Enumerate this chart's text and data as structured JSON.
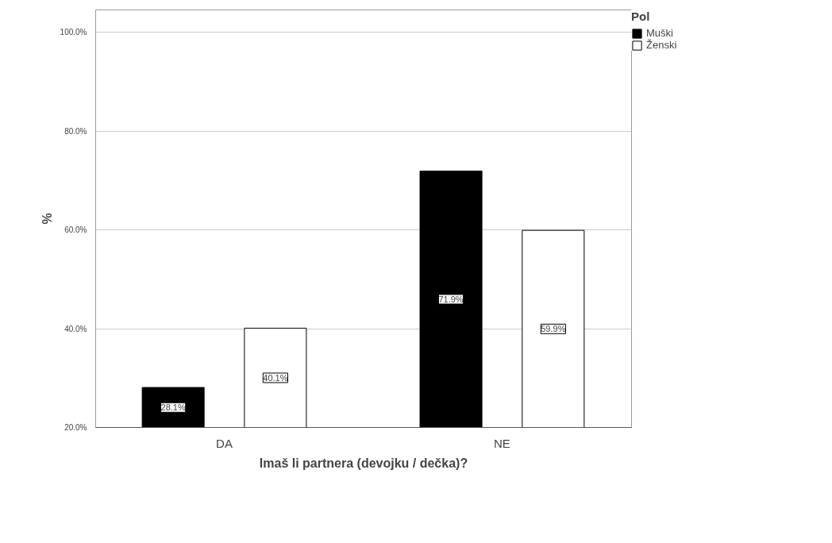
{
  "chart_data": {
    "type": "bar",
    "xlabel": "Imaš li partnera (devojku / dečka)?",
    "ylabel": "%",
    "legend_title": "Pol",
    "categories": [
      "DA",
      "NE"
    ],
    "series": [
      {
        "name": "Muški",
        "color": "#000000",
        "values": [
          28.1,
          71.9
        ],
        "value_labels": [
          "28.1%",
          "71.9%"
        ]
      },
      {
        "name": "Ženski",
        "color": "#ffffff",
        "values": [
          40.1,
          59.9
        ],
        "value_labels": [
          "40.1%",
          "59.9%"
        ]
      }
    ],
    "ylim": [
      20,
      104.5
    ],
    "yticks": [
      {
        "value": 20,
        "label": "20.0%"
      },
      {
        "value": 40,
        "label": "40.0%"
      },
      {
        "value": 60,
        "label": "60.0%"
      },
      {
        "value": 80,
        "label": "80.0%"
      },
      {
        "value": 100,
        "label": "100.0%"
      }
    ],
    "grid": "y",
    "legend": "top right"
  }
}
